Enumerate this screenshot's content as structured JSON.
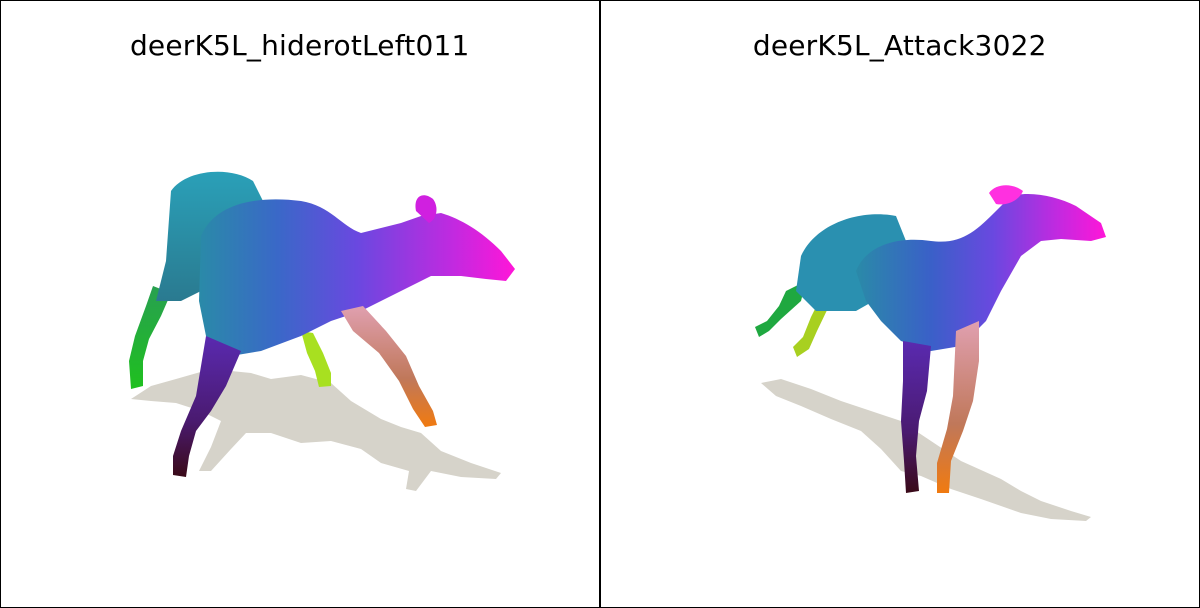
{
  "panels": [
    {
      "title": "deerK5L_hiderotLeft011"
    },
    {
      "title": "deerK5L_Attack3022"
    }
  ],
  "colors": {
    "shadow": "#d6d3ca",
    "teal": "#2a8aa8",
    "blue": "#4a4ad8",
    "purple": "#8a3ae0",
    "magenta": "#ff16d8",
    "green": "#1fc01f",
    "lime": "#a8e020",
    "pink": "#d8909a",
    "orange": "#f07a10",
    "darkred": "#4a0a1a"
  }
}
